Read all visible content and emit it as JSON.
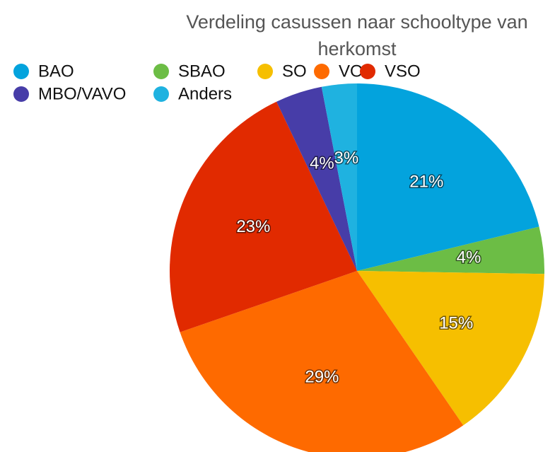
{
  "chart_data": {
    "type": "pie",
    "title": "Verdeling casussen naar schooltype van herkomst",
    "categories": [
      "BAO",
      "SBAO",
      "SO",
      "VO",
      "VSO",
      "MBO/VAVO",
      "Anders"
    ],
    "values": [
      21,
      4,
      15,
      29,
      23,
      4,
      3
    ],
    "value_labels": [
      "21%",
      "4%",
      "15%",
      "29%",
      "23%",
      "4%",
      "3%"
    ],
    "colors": [
      "#03a3dd",
      "#6cbd45",
      "#f6bf00",
      "#fe6a00",
      "#e12a00",
      "#473da8",
      "#1fb2e0"
    ],
    "legend": "top"
  }
}
